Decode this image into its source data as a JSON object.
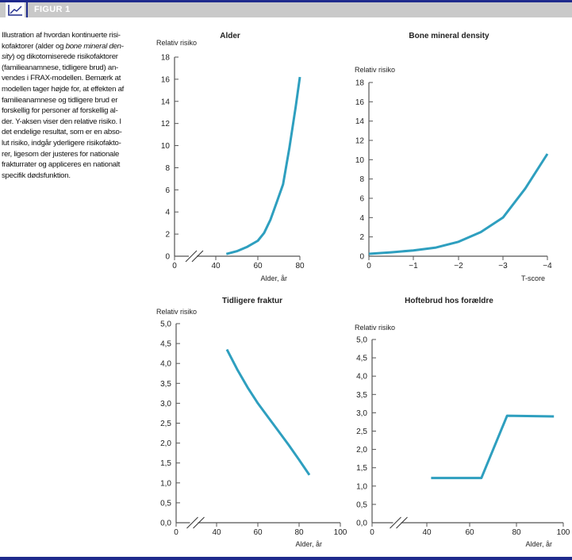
{
  "header": {
    "title": "FIGUR 1",
    "icon": "line-chart-icon"
  },
  "caption": {
    "lines": [
      {
        "pre": "Illustration af hvordan kontinuerte risi-",
        "em": "",
        "post": ""
      },
      {
        "pre": "kofaktorer (alder og ",
        "em": "bone mineral den-",
        "post": ""
      },
      {
        "pre": "",
        "em": "sity",
        "post": ") og dikotomiserede risikofaktorer"
      },
      {
        "pre": "(familieanamnese, tidligere brud) an-",
        "em": "",
        "post": ""
      },
      {
        "pre": "vendes i FRAX-modellen. Bemærk at",
        "em": "",
        "post": ""
      },
      {
        "pre": "modellen tager højde for, at effekten af",
        "em": "",
        "post": ""
      },
      {
        "pre": "familieanamnese og tidligere brud er",
        "em": "",
        "post": ""
      },
      {
        "pre": "forskellig for personer af forskellig al-",
        "em": "",
        "post": ""
      },
      {
        "pre": "der. Y-aksen viser den relative risiko. I",
        "em": "",
        "post": ""
      },
      {
        "pre": "det endelige resultat, som er en abso-",
        "em": "",
        "post": ""
      },
      {
        "pre": "lut risiko, indgår yderligere risikofakto-",
        "em": "",
        "post": ""
      },
      {
        "pre": "rer, ligesom der justeres for nationale",
        "em": "",
        "post": ""
      },
      {
        "pre": "frakturrater og appliceres en nationalt",
        "em": "",
        "post": ""
      },
      {
        "pre": "specifik dødsfunktion.",
        "em": "",
        "post": ""
      }
    ]
  },
  "colors": {
    "line": "#2e9fbf",
    "axis": "#555555",
    "accent": "#1f2a8c"
  },
  "chart_data": [
    {
      "type": "line",
      "title": "Alder",
      "ylabel": "Relativ risiko",
      "xlabel": "Alder, år",
      "xticks": [
        0,
        40,
        60,
        80
      ],
      "xtick_labels": [
        "0",
        "40",
        "60",
        "80"
      ],
      "axis_break": true,
      "yticks": [
        0,
        2,
        4,
        6,
        8,
        10,
        12,
        14,
        16,
        18
      ],
      "ytick_labels": [
        "0",
        "2",
        "4",
        "6",
        "8",
        "10",
        "12",
        "14",
        "16",
        "18"
      ],
      "ylim": [
        0,
        18
      ],
      "x": [
        45,
        50,
        55,
        60,
        63,
        66,
        69,
        72,
        75,
        78,
        80
      ],
      "y": [
        0.2,
        0.45,
        0.85,
        1.4,
        2.1,
        3.3,
        4.9,
        6.5,
        9.8,
        13.5,
        16.2
      ]
    },
    {
      "type": "line",
      "title": "Bone mineral density",
      "ylabel": "Relativ risiko",
      "xlabel": "T-score",
      "xticks": [
        0,
        -1,
        -2,
        -3,
        -4
      ],
      "xtick_labels": [
        "0",
        "−1",
        "−2",
        "−3",
        "−4"
      ],
      "axis_break": false,
      "yticks": [
        0,
        2,
        4,
        6,
        8,
        10,
        12,
        14,
        16,
        18
      ],
      "ytick_labels": [
        "0",
        "2",
        "4",
        "6",
        "8",
        "10",
        "12",
        "14",
        "16",
        "18"
      ],
      "ylim": [
        0,
        18
      ],
      "x": [
        0,
        -0.5,
        -1,
        -1.5,
        -2,
        -2.5,
        -3,
        -3.5,
        -4
      ],
      "y": [
        0.25,
        0.4,
        0.6,
        0.9,
        1.5,
        2.5,
        4.0,
        7.0,
        10.6
      ]
    },
    {
      "type": "line",
      "title": "Tidligere fraktur",
      "ylabel": "Relativ risiko",
      "xlabel": "Alder, år",
      "xticks": [
        0,
        40,
        60,
        80,
        100
      ],
      "xtick_labels": [
        "0",
        "40",
        "60",
        "80",
        "100"
      ],
      "axis_break": true,
      "yticks": [
        0,
        0.5,
        1,
        1.5,
        2,
        2.5,
        3,
        3.5,
        4,
        4.5,
        5
      ],
      "ytick_labels": [
        "0,0",
        "0,5",
        "1,0",
        "1,5",
        "2,0",
        "2,5",
        "3,0",
        "3,5",
        "4,0",
        "4,5",
        "5,0"
      ],
      "ylim": [
        0,
        5
      ],
      "x": [
        45,
        50,
        55,
        60,
        65,
        70,
        75,
        80,
        85
      ],
      "y": [
        4.35,
        3.85,
        3.4,
        3.0,
        2.65,
        2.3,
        1.95,
        1.58,
        1.2
      ]
    },
    {
      "type": "line",
      "title": "Hoftebrud hos forældre",
      "ylabel": "Relativ risiko",
      "xlabel": "Alder, år",
      "xticks": [
        0,
        40,
        60,
        80,
        100
      ],
      "xtick_labels": [
        "0",
        "40",
        "60",
        "80",
        "100"
      ],
      "axis_break": true,
      "yticks": [
        0,
        0.5,
        1,
        1.5,
        2,
        2.5,
        3,
        3.5,
        4,
        4.5,
        5
      ],
      "ytick_labels": [
        "0,0",
        "0,5",
        "1,0",
        "1,5",
        "2,0",
        "2,5",
        "3,0",
        "3,5",
        "4,0",
        "4,5",
        "5,0"
      ],
      "ylim": [
        0,
        5
      ],
      "x": [
        42,
        65,
        76,
        96
      ],
      "y": [
        1.22,
        1.22,
        2.92,
        2.9
      ]
    }
  ]
}
